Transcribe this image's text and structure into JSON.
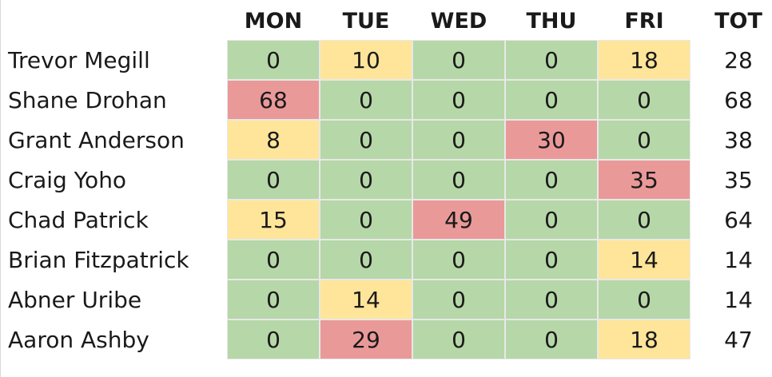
{
  "table": {
    "header": [
      "MON",
      "TUE",
      "WED",
      "THU",
      "FRI",
      "TOT"
    ],
    "rows": [
      {
        "name": "Trevor Megill",
        "values": [
          0,
          10,
          0,
          0,
          18,
          28
        ],
        "colors": [
          "#b6d7a8",
          "#ffe599",
          "#b6d7a8",
          "#b6d7a8",
          "#ffe599",
          null
        ]
      },
      {
        "name": "Shane Drohan",
        "values": [
          68,
          0,
          0,
          0,
          0,
          68
        ],
        "colors": [
          "#ea9999",
          "#b6d7a8",
          "#b6d7a8",
          "#b6d7a8",
          "#b6d7a8",
          null
        ]
      },
      {
        "name": "Grant Anderson",
        "values": [
          8,
          0,
          0,
          30,
          0,
          38
        ],
        "colors": [
          "#ffe599",
          "#b6d7a8",
          "#b6d7a8",
          "#ea9999",
          "#b6d7a8",
          null
        ]
      },
      {
        "name": "Craig Yoho",
        "values": [
          0,
          0,
          0,
          0,
          35,
          35
        ],
        "colors": [
          "#b6d7a8",
          "#b6d7a8",
          "#b6d7a8",
          "#b6d7a8",
          "#ea9999",
          null
        ]
      },
      {
        "name": "Chad Patrick",
        "values": [
          15,
          0,
          49,
          0,
          0,
          64
        ],
        "colors": [
          "#ffe599",
          "#b6d7a8",
          "#ea9999",
          "#b6d7a8",
          "#b6d7a8",
          null
        ]
      },
      {
        "name": "Brian Fitzpatrick",
        "values": [
          0,
          0,
          0,
          0,
          14,
          14
        ],
        "colors": [
          "#b6d7a8",
          "#b6d7a8",
          "#b6d7a8",
          "#b6d7a8",
          "#ffe599",
          null
        ]
      },
      {
        "name": "Abner Uribe",
        "values": [
          0,
          14,
          0,
          0,
          0,
          14
        ],
        "colors": [
          "#b6d7a8",
          "#ffe599",
          "#b6d7a8",
          "#b6d7a8",
          "#b6d7a8",
          null
        ]
      },
      {
        "name": "Aaron Ashby",
        "values": [
          0,
          29,
          0,
          0,
          18,
          47
        ],
        "colors": [
          "#b6d7a8",
          "#ea9999",
          "#b6d7a8",
          "#b6d7a8",
          "#ffe599",
          null
        ]
      }
    ]
  }
}
